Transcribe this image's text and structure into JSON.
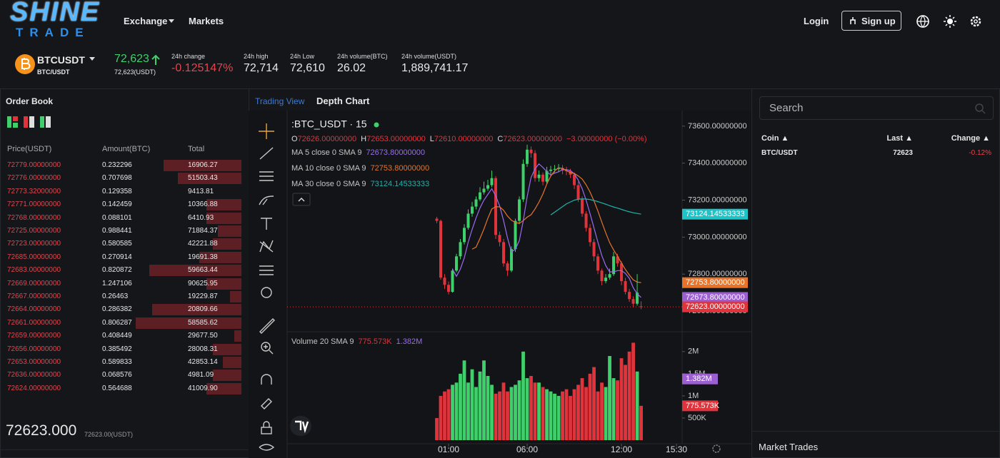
{
  "header": {
    "logo": {
      "top": "SHINE",
      "bottom": "TRADE"
    },
    "nav": [
      "Exchange",
      "Markets"
    ],
    "login": "Login",
    "signup": "Sign up"
  },
  "ticker": {
    "symbol": "BTCUSDT",
    "pair": "BTC/USDT",
    "price": "72,623",
    "price_usdt": "72,623(USDT)",
    "stats": [
      {
        "label": "24h change",
        "value": "-0.125147%"
      },
      {
        "label": "24h high",
        "value": "72,714"
      },
      {
        "label": "24h Low",
        "value": "72,610"
      },
      {
        "label": "24h volume(BTC)",
        "value": "26.02"
      },
      {
        "label": "24h volume(USDT)",
        "value": "1,889,741.17"
      }
    ]
  },
  "order_book": {
    "title": "Order Book",
    "columns": [
      "Price(USDT)",
      "Amount(BTC)",
      "Total"
    ],
    "rows": [
      {
        "price": "72779.00000000",
        "amount": "0.232296",
        "total": "16906.27",
        "depth": 33
      },
      {
        "price": "72776.00000000",
        "amount": "0.707698",
        "total": "51503.43",
        "depth": 27
      },
      {
        "price": "72773.32000000",
        "amount": "0.129358",
        "total": "9413.81",
        "depth": 0
      },
      {
        "price": "72771.00000000",
        "amount": "0.142459",
        "total": "10366.88",
        "depth": 15
      },
      {
        "price": "72768.00000000",
        "amount": "0.088101",
        "total": "6410.93",
        "depth": 15
      },
      {
        "price": "72725.00000000",
        "amount": "0.988441",
        "total": "71884.37",
        "depth": 10
      },
      {
        "price": "72723.00000000",
        "amount": "0.580585",
        "total": "42221.88",
        "depth": 12
      },
      {
        "price": "72685.00000000",
        "amount": "0.270914",
        "total": "19691.38",
        "depth": 18
      },
      {
        "price": "72683.00000000",
        "amount": "0.820872",
        "total": "59663.44",
        "depth": 39
      },
      {
        "price": "72669.00000000",
        "amount": "1.247106",
        "total": "90625.95",
        "depth": 15
      },
      {
        "price": "72667.00000000",
        "amount": "0.26463",
        "total": "19229.87",
        "depth": 5
      },
      {
        "price": "72664.00000000",
        "amount": "0.286382",
        "total": "20809.66",
        "depth": 38
      },
      {
        "price": "72661.00000000",
        "amount": "0.806287",
        "total": "58585.62",
        "depth": 45
      },
      {
        "price": "72659.00000000",
        "amount": "0.408449",
        "total": "29677.50",
        "depth": 3
      },
      {
        "price": "72656.00000000",
        "amount": "0.385492",
        "total": "28008.31",
        "depth": 12
      },
      {
        "price": "72653.00000000",
        "amount": "0.589833",
        "total": "42853.14",
        "depth": 8
      },
      {
        "price": "72636.00000000",
        "amount": "0.068576",
        "total": "4981.09",
        "depth": 12
      },
      {
        "price": "72624.00000000",
        "amount": "0.564688",
        "total": "41009.90",
        "depth": 15
      }
    ],
    "last_price": "72623.000",
    "last_price_usdt": "72623.00(USDT)"
  },
  "chart": {
    "tabs": [
      "Trading View",
      "Depth Chart"
    ],
    "symbol": ":BTC_USDT · 15",
    "ohlc": [
      {
        "key": "O",
        "value": "72626.00000000"
      },
      {
        "key": "H",
        "value": "72653.00000000"
      },
      {
        "key": "L",
        "value": "72610.00000000"
      },
      {
        "key": "C",
        "value": "72623.00000000"
      }
    ],
    "change": "−3.00000000 (−0.00%)",
    "up_color": "#3fcf6b",
    "down_color": "#e0343c",
    "x": [
      0.25,
      0.5,
      0.75,
      1,
      1.25,
      1.5,
      1.75,
      2,
      2.25,
      2.5,
      2.75,
      3,
      3.25,
      3.5,
      3.75,
      4,
      4.25,
      4.5,
      4.75,
      5,
      5.25,
      5.5,
      5.75,
      6,
      6.25,
      6.5,
      6.75,
      7,
      7.25,
      7.5,
      7.75,
      8,
      8.25,
      8.5,
      8.75,
      9,
      9.25,
      9.5,
      9.75,
      10,
      10.25,
      10.5,
      10.75,
      11,
      11.25,
      11.5,
      11.75,
      12,
      12.25,
      12.5,
      12.75,
      13,
      13.25
    ],
    "candles": [
      [
        73100,
        73110,
        73075,
        73088
      ],
      [
        73088,
        73095,
        72770,
        72781
      ],
      [
        72781,
        72800,
        72720,
        72742
      ],
      [
        72742,
        72760,
        72690,
        72704
      ],
      [
        72704,
        72830,
        72700,
        72819
      ],
      [
        72819,
        72910,
        72810,
        72896
      ],
      [
        72896,
        72990,
        72880,
        72973
      ],
      [
        72973,
        73070,
        72960,
        73050
      ],
      [
        73050,
        73150,
        73040,
        73127
      ],
      [
        73127,
        73190,
        73110,
        73165
      ],
      [
        73165,
        73220,
        73150,
        73204
      ],
      [
        73204,
        73270,
        73195,
        73242
      ],
      [
        73242,
        73300,
        73230,
        73262
      ],
      [
        73262,
        73310,
        73250,
        73281
      ],
      [
        73281,
        73360,
        73270,
        73319
      ],
      [
        73319,
        73330,
        72990,
        73012
      ],
      [
        73012,
        73030,
        72950,
        72973
      ],
      [
        72973,
        72990,
        72840,
        72858
      ],
      [
        72858,
        72870,
        72790,
        72819
      ],
      [
        72819,
        72950,
        72810,
        72935
      ],
      [
        72935,
        73100,
        72920,
        73088
      ],
      [
        73088,
        73220,
        73070,
        73204
      ],
      [
        73204,
        73420,
        73190,
        73396
      ],
      [
        73396,
        73500,
        73380,
        73473
      ],
      [
        73473,
        73490,
        73430,
        73454
      ],
      [
        73454,
        73470,
        73300,
        73319
      ],
      [
        73319,
        73360,
        73300,
        73338
      ],
      [
        73338,
        73350,
        73280,
        73300
      ],
      [
        73300,
        73380,
        73290,
        73358
      ],
      [
        73358,
        73385,
        73340,
        73365
      ],
      [
        73365,
        73390,
        73350,
        73369
      ],
      [
        73369,
        73395,
        73355,
        73375
      ],
      [
        73375,
        73390,
        73340,
        73360
      ],
      [
        73360,
        73380,
        73335,
        73358
      ],
      [
        73358,
        73370,
        73320,
        73338
      ],
      [
        73338,
        73350,
        73260,
        73281
      ],
      [
        73281,
        73300,
        73190,
        73204
      ],
      [
        73204,
        73220,
        73110,
        73127
      ],
      [
        73127,
        73140,
        73030,
        73050
      ],
      [
        73050,
        73070,
        72950,
        72973
      ],
      [
        72973,
        72990,
        72870,
        72896
      ],
      [
        72896,
        72910,
        72800,
        72819
      ],
      [
        72819,
        72830,
        72740,
        72762
      ],
      [
        72762,
        72800,
        72750,
        72781
      ],
      [
        72781,
        72830,
        72770,
        72800
      ],
      [
        72800,
        72920,
        72790,
        72896
      ],
      [
        72896,
        72910,
        72840,
        72858
      ],
      [
        72858,
        72870,
        72740,
        72762
      ],
      [
        72762,
        72780,
        72690,
        72704
      ],
      [
        72704,
        72720,
        72650,
        72665
      ],
      [
        72665,
        72680,
        72620,
        72640
      ],
      [
        72640,
        72800,
        72630,
        72700
      ],
      [
        72626,
        72653,
        72610,
        72623
      ]
    ],
    "volumes": [
      500000,
      1000000,
      1100000,
      1150000,
      1250000,
      1300000,
      1500000,
      1800000,
      1300000,
      1600000,
      1200000,
      1550000,
      1800000,
      1450000,
      1250000,
      1050000,
      1100000,
      1300000,
      1100000,
      1200000,
      1250000,
      1350000,
      2000000,
      1400000,
      1450000,
      1300000,
      1300000,
      1200000,
      1150000,
      1100000,
      1050000,
      1000000,
      1100000,
      1150000,
      1000000,
      1150000,
      1250000,
      1400000,
      1200000,
      1500000,
      1650000,
      1100000,
      1300000,
      1200000,
      1900000,
      1400000,
      1350000,
      1850000,
      1700000,
      2000000,
      2200000,
      1550000,
      775573
    ],
    "ma": [
      {
        "name": "MA 5 close 0 SMA 9",
        "value": "72673.80000000",
        "color": "#9b6bf0",
        "values": [
          null,
          null,
          null,
          null,
          72827,
          72788,
          72827,
          72888,
          72973,
          73042,
          73104,
          73158,
          73200,
          73231,
          73262,
          73223,
          73169,
          73089,
          72996,
          72919,
          72935,
          72981,
          73088,
          73219,
          73323,
          73369,
          73396,
          73377,
          73354,
          73336,
          73346,
          73353,
          73365,
          73365,
          73360,
          73342,
          73308,
          73262,
          73200,
          73127,
          73050,
          72973,
          72900,
          72846,
          72812,
          72812,
          72819,
          72819,
          72804,
          72777,
          72726,
          72694,
          72673.8
        ]
      },
      {
        "name": "MA 10 close 0 SMA 9",
        "value": "72753.80000000",
        "color": "#e8742a",
        "values": [
          null,
          null,
          null,
          null,
          null,
          null,
          null,
          null,
          null,
          72935,
          72946,
          72993,
          73044,
          73102,
          73152,
          73164,
          73164,
          73145,
          73114,
          73091,
          73079,
          73075,
          73089,
          73108,
          73121,
          73152,
          73189,
          73233,
          73287,
          73330,
          73358,
          73375,
          73371,
          73360,
          73348,
          73344,
          73331,
          73314,
          73283,
          73244,
          73196,
          73141,
          73081,
          73023,
          72970,
          72931,
          72896,
          72860,
          72825,
          72795,
          72769,
          72757,
          72753.8
        ]
      },
      {
        "name": "MA 30 close 0 SMA 9",
        "value": "73124.14533333",
        "color": "#20b2aa",
        "values": [
          null,
          null,
          null,
          null,
          null,
          null,
          null,
          null,
          null,
          null,
          null,
          null,
          null,
          null,
          null,
          null,
          null,
          null,
          null,
          null,
          null,
          null,
          null,
          null,
          null,
          null,
          null,
          null,
          null,
          73120,
          73135,
          73150,
          73165,
          73180,
          73190,
          73200,
          73205,
          73207,
          73206,
          73203,
          73198,
          73192,
          73185,
          73178,
          73170,
          73163,
          73157,
          73150,
          73143,
          73137,
          73132,
          73128,
          73124.14533333
        ]
      }
    ],
    "volume_legend": {
      "name": "Volume 20 SMA 9",
      "values": [
        "775.573K",
        "1.382M"
      ],
      "colors": [
        "#e0343c",
        "#9b6bf0"
      ]
    },
    "xlim": [
      -9.27,
      15.86
    ],
    "xticks": [
      {
        "value": 1,
        "label": "01:00"
      },
      {
        "value": 6,
        "label": "06:00"
      },
      {
        "value": 12,
        "label": "12:00"
      },
      {
        "value": 15.5,
        "label": "15:30"
      }
    ],
    "ylim": [
      72500,
      73665
    ],
    "yticks": [
      {
        "value": 73600,
        "label": "73600.00000000"
      },
      {
        "value": 73400,
        "label": "73400.00000000"
      },
      {
        "value": 73200,
        "label": "73200.00000000"
      },
      {
        "value": 73000,
        "label": "73000.00000000"
      },
      {
        "value": 72800,
        "label": "72800.00000000"
      },
      {
        "value": 72600,
        "label": "72600.00000000"
      }
    ],
    "volume_ylim": [
      0,
      2400000
    ],
    "volume_yticks": [
      {
        "value": 2000000,
        "label": "2M"
      },
      {
        "value": 1500000,
        "label": "1.5M"
      },
      {
        "value": 1000000,
        "label": "1M"
      },
      {
        "value": 500000,
        "label": "500K"
      }
    ],
    "price_badges": [
      {
        "value": 73124.14533333,
        "label": "73124.14533333",
        "color": "#1fc3c7"
      },
      {
        "value": 72753.8,
        "label": "72753.80000000",
        "color": "#e8742a"
      },
      {
        "value": 72673.8,
        "label": "72673.80000000",
        "color": "#9b5fd0"
      },
      {
        "value": 72623,
        "label": "72623.00000000",
        "color": "#e0343c"
      }
    ],
    "volume_badges": [
      {
        "value": 1382000,
        "label": "1.382M",
        "color": "#9b5fd0"
      },
      {
        "value": 775573,
        "label": "775.573K",
        "color": "#e0343c"
      }
    ]
  },
  "markets": {
    "search": "Search",
    "columns": [
      "Coin ▲",
      "Last ▲",
      "Change ▲"
    ],
    "rows": [
      [
        "BTC/USDT",
        "72623",
        "-0.12%"
      ]
    ],
    "trades_title": "Market Trades"
  }
}
